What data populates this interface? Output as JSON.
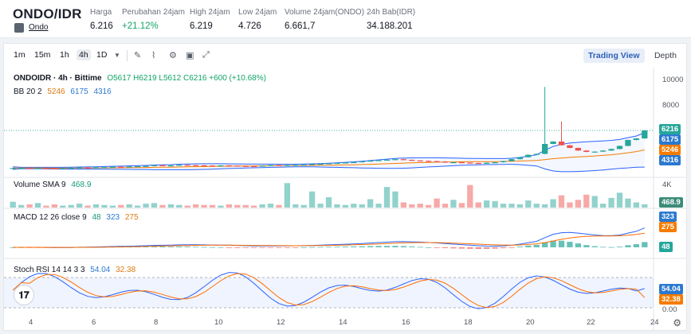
{
  "header": {
    "pair": "ONDO/IDR",
    "sub_label": "Ondo",
    "stats": [
      {
        "label": "Harga",
        "value": "6.216",
        "up": false
      },
      {
        "label": "Perubahan 24jam",
        "value": "+21.12%",
        "up": true
      },
      {
        "label": "High 24jam",
        "value": "6.219",
        "up": false
      },
      {
        "label": "Low 24jam",
        "value": "4.726",
        "up": false
      },
      {
        "label": "Volume 24jam(ONDO)",
        "value": "6.661,7",
        "up": false
      },
      {
        "label": "24h Bab(IDR)",
        "value": "34.188.201",
        "up": false
      }
    ]
  },
  "toolbar": {
    "timeframes": [
      "1m",
      "15m",
      "1h",
      "4h",
      "1D"
    ],
    "active_timeframe": "4h",
    "tabs": [
      "Trading View",
      "Depth"
    ],
    "active_tab": "Trading View"
  },
  "main_pane": {
    "title": "ONDOIDR · 4h · Bittime",
    "ohlc": "O5617  H6219  L5612  C6216  +600 (+10.68%)",
    "bb_label": "BB 20 2",
    "bb_mid": "5246",
    "bb_upper": "6175",
    "bb_lower": "4316",
    "price_axis": [
      "10000",
      "8000"
    ],
    "tags": {
      "price": "6216",
      "upper": "6175",
      "mid": "5246",
      "lower": "4316"
    }
  },
  "volume_pane": {
    "label": "Volume SMA 9",
    "value": "468.9",
    "axis": "4K",
    "tag": "468.9"
  },
  "macd_pane": {
    "label": "MACD 12 26 close 9",
    "hist": "48",
    "macd": "323",
    "signal": "275",
    "tags": {
      "macd": "323",
      "signal": "275",
      "hist": "48"
    }
  },
  "stoch_pane": {
    "label": "Stoch RSI 14 14 3 3",
    "k": "54.04",
    "d": "32.38",
    "tags": {
      "k": "54.04",
      "d": "32.38"
    },
    "axis": "0.00"
  },
  "x_axis": [
    "4",
    "6",
    "8",
    "10",
    "12",
    "14",
    "16",
    "18",
    "20",
    "22",
    "24"
  ],
  "colors": {
    "up": "#26a69a",
    "down": "#ef5350",
    "bb_mid": "#f57c00",
    "bb_band": "#2962ff",
    "macd": "#2962ff",
    "signal": "#ff6d00",
    "stoch_k": "#2962ff",
    "stoch_d": "#ff6d00"
  },
  "chart_data": {
    "type": "candlestick",
    "close_series": [
      3380,
      3390,
      3372,
      3380,
      3360,
      3350,
      3370,
      3400,
      3420,
      3410,
      3440,
      3450,
      3480,
      3470,
      3500,
      3520,
      3540,
      3600,
      3560,
      3580,
      3620,
      3600,
      3590,
      3570,
      3560,
      3580,
      3560,
      3540,
      3530,
      3520,
      3560,
      3600,
      3580,
      3600,
      3620,
      3640,
      3680,
      3700,
      3740,
      3770,
      3800,
      3830,
      3890,
      3940,
      3980,
      4010,
      4050,
      4000,
      3950,
      3920,
      3900,
      3870,
      3800,
      3820,
      3790,
      3760,
      3740,
      3780,
      3820,
      3900,
      4050,
      4200,
      4380,
      4450,
      5200,
      5380,
      5100,
      4900,
      4700,
      4600,
      4620,
      4700,
      4820,
      5050,
      5500,
      5617,
      6216
    ],
    "volume": [
      0.9,
      0.4,
      0.5,
      0.7,
      0.3,
      0.5,
      0.3,
      0.4,
      0.6,
      0.3,
      0.5,
      0.4,
      0.3,
      0.4,
      0.5,
      0.3,
      0.6,
      0.7,
      0.4,
      0.5,
      0.4,
      0.3,
      0.5,
      0.4,
      0.4,
      0.3,
      0.5,
      0.4,
      0.4,
      0.3,
      0.5,
      0.6,
      0.4,
      3.8,
      0.5,
      0.4,
      2.5,
      0.6,
      1.6,
      0.5,
      0.4,
      0.6,
      0.5,
      1.3,
      0.6,
      3.2,
      2.5,
      0.8,
      0.5,
      0.6,
      0.4,
      1.4,
      0.6,
      1.2,
      0.7,
      3.5,
      0.8,
      1.1,
      1.0,
      0.6,
      0.6,
      0.5,
      1.1,
      0.6,
      0.5,
      1.3,
      1.9,
      0.8,
      1.2,
      2.0,
      1.8,
      0.6,
      1.5,
      2.3,
      1.4,
      0.8,
      0.5
    ]
  }
}
